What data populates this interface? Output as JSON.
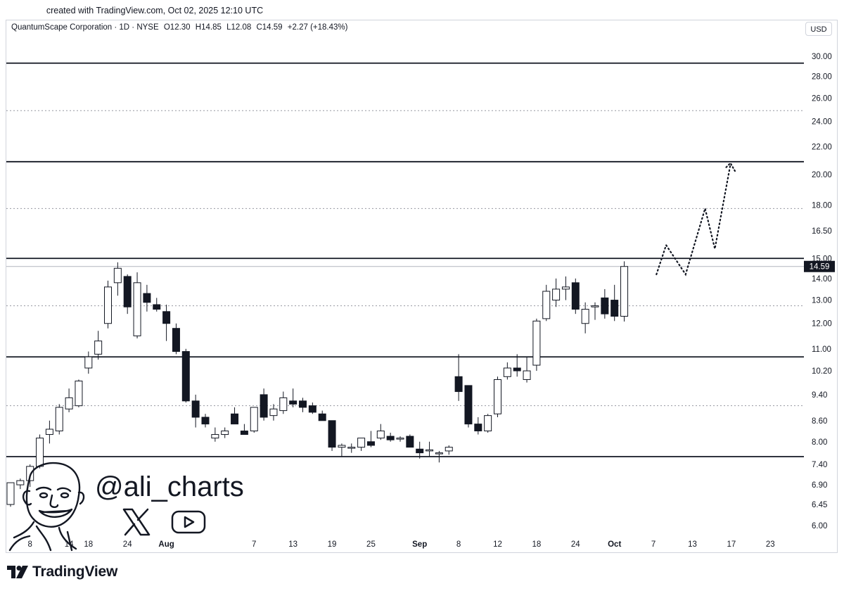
{
  "caption": "created with TradingView.com, Oct 02, 2025 12:10 UTC",
  "legend": {
    "symbol": "QuantumScape Corporation · 1D · NYSE",
    "open": "O12.30",
    "high": "H14.85",
    "low": "L12.08",
    "close": "C14.59",
    "change": "+2.27 (+18.43%)"
  },
  "currency": "USD",
  "brand": "TradingView",
  "watermark": {
    "handle": "@ali_charts"
  },
  "chart_data": {
    "type": "candlestick",
    "y_scale": "log",
    "ylim": [
      5.7,
      32.0
    ],
    "y_ticks": [
      30.0,
      28.0,
      26.0,
      24.0,
      22.0,
      20.0,
      18.0,
      16.5,
      15.0,
      14.0,
      13.0,
      12.0,
      11.0,
      10.2,
      9.4,
      8.6,
      8.0,
      7.4,
      6.9,
      6.45,
      6.0
    ],
    "x_ticks": [
      {
        "label": "8",
        "bar": 2
      },
      {
        "label": "14",
        "bar": 6
      },
      {
        "label": "18",
        "bar": 8
      },
      {
        "label": "24",
        "bar": 12
      },
      {
        "label": "Aug",
        "bar": 16,
        "bold": true
      },
      {
        "label": "7",
        "bar": 25
      },
      {
        "label": "13",
        "bar": 29
      },
      {
        "label": "19",
        "bar": 33
      },
      {
        "label": "25",
        "bar": 37
      },
      {
        "label": "Sep",
        "bar": 42,
        "bold": true
      },
      {
        "label": "8",
        "bar": 46
      },
      {
        "label": "12",
        "bar": 50
      },
      {
        "label": "18",
        "bar": 54
      },
      {
        "label": "24",
        "bar": 58
      },
      {
        "label": "Oct",
        "bar": 62,
        "bold": true
      },
      {
        "label": "7",
        "bar": 66
      },
      {
        "label": "13",
        "bar": 70
      },
      {
        "label": "17",
        "bar": 74
      },
      {
        "label": "23",
        "bar": 78
      }
    ],
    "candles": [
      {
        "o": 6.45,
        "h": 6.95,
        "l": 6.4,
        "c": 6.95
      },
      {
        "o": 6.9,
        "h": 7.05,
        "l": 6.8,
        "c": 7.0
      },
      {
        "o": 7.0,
        "h": 7.4,
        "l": 6.85,
        "c": 7.35
      },
      {
        "o": 7.35,
        "h": 8.2,
        "l": 7.3,
        "c": 8.1
      },
      {
        "o": 8.2,
        "h": 8.6,
        "l": 7.95,
        "c": 8.35
      },
      {
        "o": 8.3,
        "h": 9.1,
        "l": 8.2,
        "c": 9.0
      },
      {
        "o": 8.95,
        "h": 9.6,
        "l": 8.85,
        "c": 9.3
      },
      {
        "o": 9.05,
        "h": 9.9,
        "l": 9.0,
        "c": 9.85
      },
      {
        "o": 10.3,
        "h": 10.9,
        "l": 10.1,
        "c": 10.7
      },
      {
        "o": 10.8,
        "h": 11.7,
        "l": 10.6,
        "c": 11.3
      },
      {
        "o": 12.0,
        "h": 13.9,
        "l": 11.8,
        "c": 13.6
      },
      {
        "o": 13.8,
        "h": 14.8,
        "l": 13.2,
        "c": 14.5
      },
      {
        "o": 14.1,
        "h": 14.2,
        "l": 12.4,
        "c": 12.7
      },
      {
        "o": 11.5,
        "h": 14.3,
        "l": 11.4,
        "c": 13.8
      },
      {
        "o": 13.3,
        "h": 13.7,
        "l": 12.5,
        "c": 12.9
      },
      {
        "o": 12.8,
        "h": 13.1,
        "l": 12.5,
        "c": 12.6
      },
      {
        "o": 12.5,
        "h": 12.8,
        "l": 11.3,
        "c": 12.0
      },
      {
        "o": 11.8,
        "h": 12.0,
        "l": 10.8,
        "c": 10.9
      },
      {
        "o": 10.9,
        "h": 11.0,
        "l": 9.15,
        "c": 9.2
      },
      {
        "o": 9.2,
        "h": 9.4,
        "l": 8.4,
        "c": 8.7
      },
      {
        "o": 8.7,
        "h": 8.8,
        "l": 8.4,
        "c": 8.5
      },
      {
        "o": 8.1,
        "h": 8.4,
        "l": 8.0,
        "c": 8.2
      },
      {
        "o": 8.2,
        "h": 8.4,
        "l": 8.1,
        "c": 8.3
      },
      {
        "o": 8.8,
        "h": 9.0,
        "l": 8.5,
        "c": 8.5
      },
      {
        "o": 8.3,
        "h": 8.5,
        "l": 8.2,
        "c": 8.2
      },
      {
        "o": 8.3,
        "h": 9.0,
        "l": 8.25,
        "c": 9.0
      },
      {
        "o": 9.4,
        "h": 9.6,
        "l": 8.6,
        "c": 8.7
      },
      {
        "o": 8.75,
        "h": 9.1,
        "l": 8.6,
        "c": 8.95
      },
      {
        "o": 8.9,
        "h": 9.5,
        "l": 8.8,
        "c": 9.3
      },
      {
        "o": 9.2,
        "h": 9.6,
        "l": 9.0,
        "c": 9.1
      },
      {
        "o": 9.2,
        "h": 9.3,
        "l": 8.85,
        "c": 9.0
      },
      {
        "o": 9.05,
        "h": 9.15,
        "l": 8.8,
        "c": 8.85
      },
      {
        "o": 8.8,
        "h": 8.9,
        "l": 8.6,
        "c": 8.6
      },
      {
        "o": 8.6,
        "h": 8.6,
        "l": 7.75,
        "c": 7.85
      },
      {
        "o": 7.85,
        "h": 7.95,
        "l": 7.6,
        "c": 7.9
      },
      {
        "o": 7.85,
        "h": 7.95,
        "l": 7.7,
        "c": 7.85
      },
      {
        "o": 7.85,
        "h": 8.1,
        "l": 7.75,
        "c": 8.1
      },
      {
        "o": 8.0,
        "h": 8.3,
        "l": 7.85,
        "c": 7.9
      },
      {
        "o": 8.1,
        "h": 8.5,
        "l": 8.05,
        "c": 8.3
      },
      {
        "o": 8.15,
        "h": 8.25,
        "l": 8.0,
        "c": 8.05
      },
      {
        "o": 8.1,
        "h": 8.15,
        "l": 8.0,
        "c": 8.1
      },
      {
        "o": 8.15,
        "h": 8.2,
        "l": 7.85,
        "c": 7.85
      },
      {
        "o": 7.8,
        "h": 8.0,
        "l": 7.55,
        "c": 7.7
      },
      {
        "o": 7.75,
        "h": 8.0,
        "l": 7.6,
        "c": 7.78
      },
      {
        "o": 7.7,
        "h": 7.75,
        "l": 7.45,
        "c": 7.7
      },
      {
        "o": 7.75,
        "h": 7.9,
        "l": 7.65,
        "c": 7.85
      },
      {
        "o": 10.0,
        "h": 10.8,
        "l": 9.2,
        "c": 9.5
      },
      {
        "o": 9.7,
        "h": 9.7,
        "l": 8.4,
        "c": 8.5
      },
      {
        "o": 8.5,
        "h": 8.7,
        "l": 8.2,
        "c": 8.3
      },
      {
        "o": 8.3,
        "h": 8.8,
        "l": 8.25,
        "c": 8.75
      },
      {
        "o": 8.8,
        "h": 10.0,
        "l": 8.7,
        "c": 9.9
      },
      {
        "o": 10.0,
        "h": 10.5,
        "l": 9.9,
        "c": 10.3
      },
      {
        "o": 10.3,
        "h": 10.8,
        "l": 10.0,
        "c": 10.2
      },
      {
        "o": 9.9,
        "h": 10.7,
        "l": 9.8,
        "c": 10.2
      },
      {
        "o": 10.4,
        "h": 12.2,
        "l": 10.2,
        "c": 12.1
      },
      {
        "o": 12.2,
        "h": 13.7,
        "l": 12.1,
        "c": 13.4
      },
      {
        "o": 13.0,
        "h": 14.0,
        "l": 12.7,
        "c": 13.5
      },
      {
        "o": 13.5,
        "h": 14.1,
        "l": 13.0,
        "c": 13.6
      },
      {
        "o": 13.8,
        "h": 14.0,
        "l": 12.4,
        "c": 12.6
      },
      {
        "o": 12.0,
        "h": 12.9,
        "l": 11.6,
        "c": 12.6
      },
      {
        "o": 12.7,
        "h": 12.9,
        "l": 12.15,
        "c": 12.75
      },
      {
        "o": 13.1,
        "h": 13.5,
        "l": 12.2,
        "c": 12.4
      },
      {
        "o": 13.0,
        "h": 13.7,
        "l": 12.1,
        "c": 12.3
      },
      {
        "o": 12.3,
        "h": 14.85,
        "l": 12.08,
        "c": 14.59
      }
    ],
    "last_price_label": "14.59",
    "horizontal_levels": {
      "solid": [
        29.3,
        20.9,
        15.0,
        10.7,
        7.6
      ],
      "dashed": [
        24.9,
        17.8,
        12.75,
        9.05
      ]
    },
    "projection_path": [
      {
        "bar": 66.3,
        "y": 14.2
      },
      {
        "bar": 67.3,
        "y": 15.7
      },
      {
        "bar": 69.3,
        "y": 14.2
      },
      {
        "bar": 71.3,
        "y": 17.8
      },
      {
        "bar": 72.3,
        "y": 15.5
      },
      {
        "bar": 73.9,
        "y": 20.7
      }
    ]
  }
}
